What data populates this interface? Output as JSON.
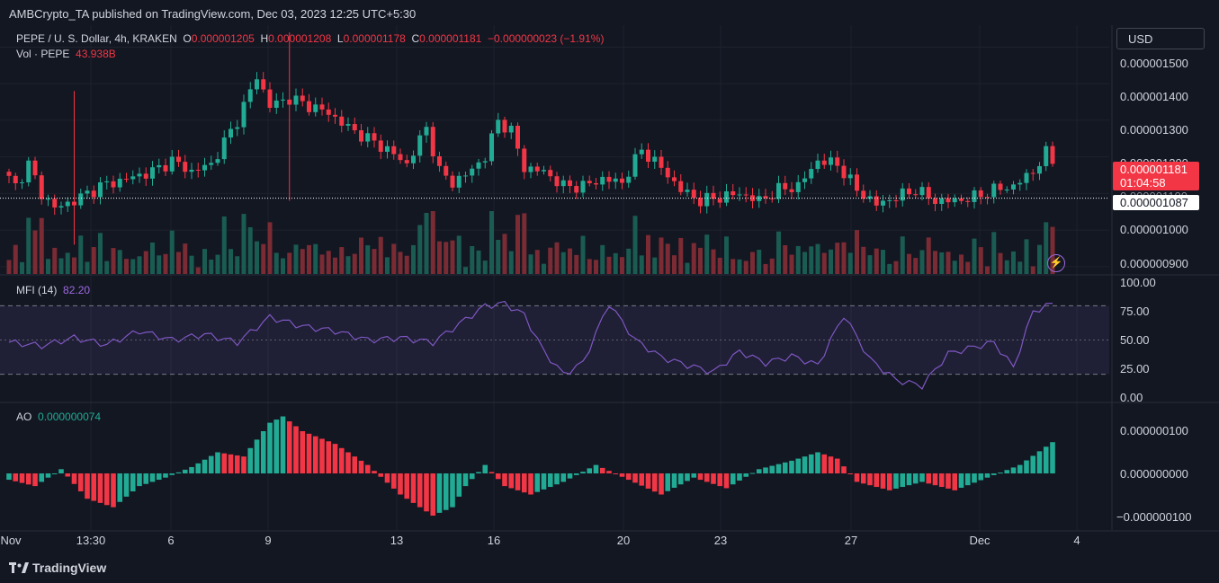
{
  "header": {
    "published": "AMBCrypto_TA published on TradingView.com, Dec 03, 2023 12:25 UTC+5:30"
  },
  "main_legend": {
    "symbol": "PEPE / U. S. Dollar, 4h, KRAKEN",
    "o_label": "O",
    "o_value": "0.000001205",
    "h_label": "H",
    "h_value": "0.000001208",
    "l_label": "L",
    "l_value": "0.000001178",
    "c_label": "C",
    "c_value": "0.000001181",
    "change": "−0.000000023 (−1.91%)"
  },
  "vol_legend": {
    "label": "Vol · PEPE",
    "value": "43.938B"
  },
  "currency_button": "USD",
  "price_tags": {
    "last": "0.000001181",
    "countdown": "01:04:58",
    "line": "0.000001087",
    "hidden_under_tag": "0.000001100"
  },
  "mfi_legend": {
    "label": "MFI (14)",
    "value": "82.20"
  },
  "ao_legend": {
    "label": "AO",
    "value": "0.000000074"
  },
  "brand": "TradingView",
  "colors": {
    "background": "#131722",
    "up": "#22ab94",
    "down": "#f23645",
    "mfi_line": "#7e57c2",
    "grid": "#1e222d"
  },
  "chart_data": [
    {
      "type": "candlestick",
      "title": "PEPE / U. S. Dollar, 4h, KRAKEN",
      "y_ticks": [
        "0.000001500",
        "0.000001400",
        "0.000001300",
        "0.000001200",
        "0.000001000",
        "0.000000900"
      ],
      "ylim": [
        8.8e-07,
        1.56e-06
      ],
      "x_ticks": [
        "Nov",
        "13:30",
        "6",
        "9",
        "13",
        "16",
        "20",
        "23",
        "27",
        "Dec",
        "4"
      ],
      "close_anchors": [
        [
          0,
          1.14e-06
        ],
        [
          1,
          1.12e-06
        ],
        [
          3,
          1.18e-06
        ],
        [
          5,
          1.1e-06
        ],
        [
          7,
          1.06e-06
        ],
        [
          10,
          1.08e-06
        ],
        [
          14,
          1.12e-06
        ],
        [
          18,
          1.14e-06
        ],
        [
          22,
          1.16e-06
        ],
        [
          25,
          1.19e-06
        ],
        [
          28,
          1.16e-06
        ],
        [
          31,
          1.18e-06
        ],
        [
          35,
          1.3e-06
        ],
        [
          38,
          1.42e-06
        ],
        [
          40,
          1.34e-06
        ],
        [
          43,
          1.36e-06
        ],
        [
          46,
          1.34e-06
        ],
        [
          49,
          1.32e-06
        ],
        [
          52,
          1.28e-06
        ],
        [
          55,
          1.25e-06
        ],
        [
          58,
          1.22e-06
        ],
        [
          61,
          1.18e-06
        ],
        [
          64,
          1.28e-06
        ],
        [
          66,
          1.16e-06
        ],
        [
          68,
          1.13e-06
        ],
        [
          70,
          1.15e-06
        ],
        [
          73,
          1.2e-06
        ],
        [
          75,
          1.3e-06
        ],
        [
          77,
          1.27e-06
        ],
        [
          79,
          1.17e-06
        ],
        [
          82,
          1.16e-06
        ],
        [
          85,
          1.12e-06
        ],
        [
          88,
          1.12e-06
        ],
        [
          91,
          1.14e-06
        ],
        [
          94,
          1.13e-06
        ],
        [
          97,
          1.22e-06
        ],
        [
          100,
          1.17e-06
        ],
        [
          103,
          1.11e-06
        ],
        [
          106,
          1.08e-06
        ],
        [
          109,
          1.09e-06
        ],
        [
          112,
          1.1e-06
        ],
        [
          115,
          1.08e-06
        ],
        [
          118,
          1.11e-06
        ],
        [
          121,
          1.12e-06
        ],
        [
          124,
          1.19e-06
        ],
        [
          127,
          1.18e-06
        ],
        [
          130,
          1.11e-06
        ],
        [
          133,
          1.07e-06
        ],
        [
          136,
          1.09e-06
        ],
        [
          139,
          1.11e-06
        ],
        [
          142,
          1.08e-06
        ],
        [
          145,
          1.08e-06
        ],
        [
          148,
          1.09e-06
        ],
        [
          151,
          1.11e-06
        ],
        [
          154,
          1.12e-06
        ],
        [
          157,
          1.16e-06
        ],
        [
          159,
          1.21e-06
        ],
        [
          160,
          1.18e-06
        ]
      ],
      "last_close": 1.181e-06,
      "reference_line": 1.087e-06
    },
    {
      "type": "bar",
      "title": "Vol · PEPE",
      "last_value": "43.938B"
    },
    {
      "type": "line",
      "title": "MFI (14)",
      "y_ticks": [
        "100.00",
        "75.00",
        "50.00",
        "25.00",
        "0.00"
      ],
      "ylim": [
        0,
        100
      ],
      "bands": [
        20,
        80
      ],
      "x": [
        0,
        5,
        10,
        15,
        20,
        25,
        30,
        35,
        40,
        45,
        50,
        55,
        60,
        65,
        70,
        73,
        76,
        79,
        82,
        85,
        88,
        92,
        96,
        100,
        104,
        108,
        112,
        116,
        120,
        124,
        128,
        132,
        136,
        140,
        144,
        148,
        151,
        154,
        157,
        160
      ],
      "values": [
        48,
        45,
        52,
        46,
        58,
        50,
        55,
        48,
        70,
        62,
        58,
        50,
        52,
        48,
        68,
        80,
        82,
        72,
        40,
        20,
        30,
        82,
        50,
        35,
        28,
        22,
        40,
        30,
        36,
        28,
        72,
        33,
        15,
        10,
        38,
        44,
        48,
        26,
        75,
        82
      ],
      "last_value": 82.2
    },
    {
      "type": "bar",
      "title": "AO",
      "y_ticks": [
        "0.000000100",
        "0.000000000",
        "−0.000000100"
      ],
      "ylim": [
        -1.1e-07,
        1.1e-07
      ],
      "x": [
        0,
        4,
        8,
        12,
        16,
        20,
        24,
        28,
        32,
        36,
        40,
        42,
        45,
        50,
        55,
        60,
        65,
        68,
        70,
        73,
        76,
        80,
        85,
        90,
        95,
        100,
        105,
        110,
        115,
        120,
        124,
        127,
        130,
        135,
        140,
        145,
        150,
        155,
        160
      ],
      "values": [
        -1.5e-08,
        -3e-08,
        1e-08,
        -6e-08,
        -8e-08,
        -3e-08,
        -1e-08,
        1.5e-08,
        5e-08,
        4e-08,
        1.2e-07,
        1.35e-07,
        1e-07,
        7e-08,
        2e-08,
        -5e-08,
        -1e-07,
        -8e-08,
        -3e-08,
        2e-08,
        -3e-08,
        -5e-08,
        -2e-08,
        2e-08,
        -1.5e-08,
        -5e-08,
        -1e-08,
        -3.5e-08,
        1e-08,
        3e-08,
        5e-08,
        3.5e-08,
        -2e-08,
        -4e-08,
        -2e-08,
        -4e-08,
        -1e-08,
        2e-08,
        7.4e-08
      ],
      "last_value": 7.4e-08
    }
  ]
}
